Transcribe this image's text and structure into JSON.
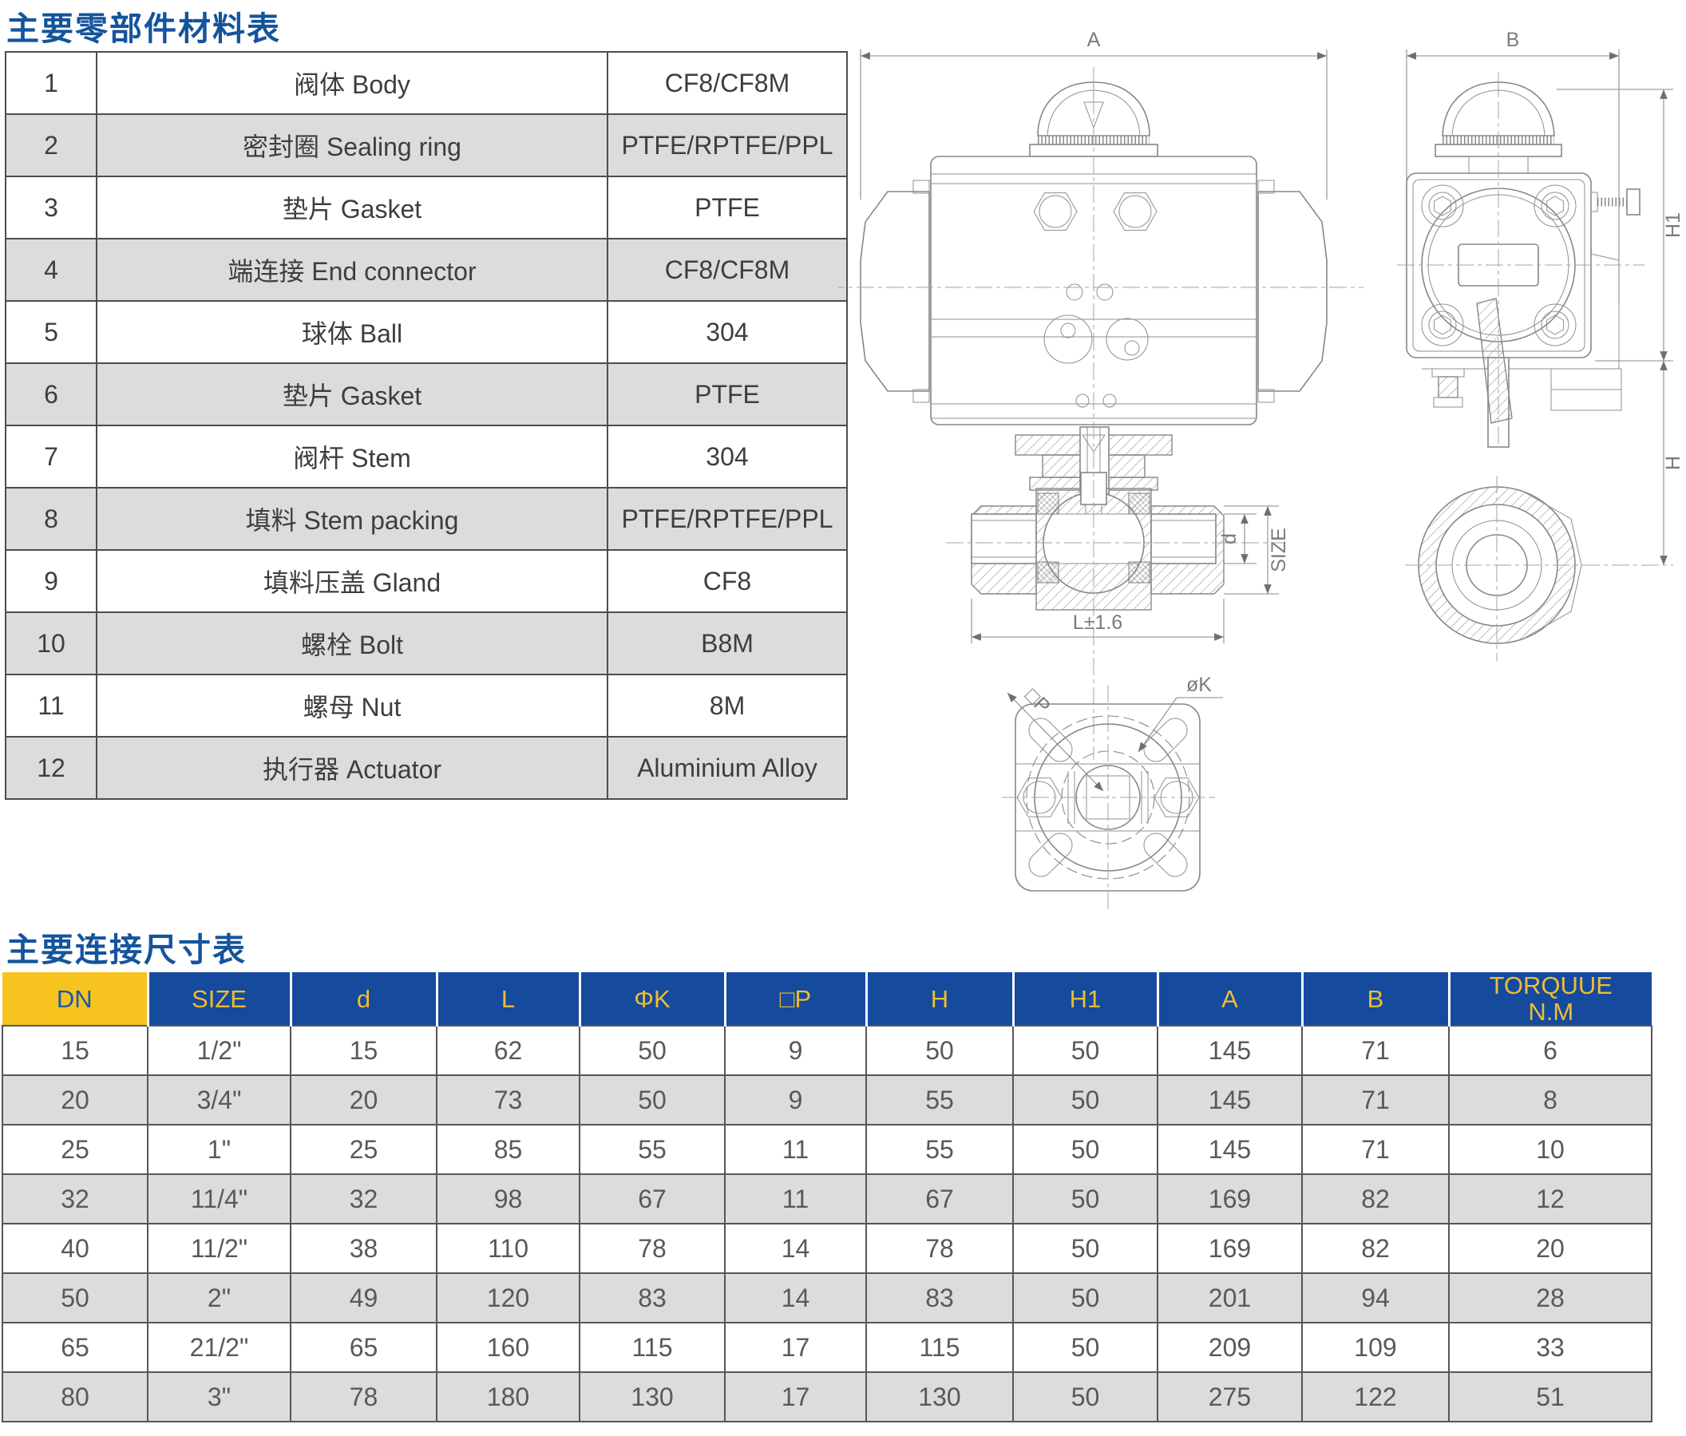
{
  "colors": {
    "title_blue": "#14549c",
    "header_blue": "#154a9d",
    "header_yellow_bg": "#f7c31f",
    "header_yellow_text": "#edbd33",
    "stripe_gray": "#dcdcdc"
  },
  "materials_section": {
    "title": "主要零部件材料表",
    "rows": [
      {
        "no": "1",
        "name": "阀体 Body",
        "material": "CF8/CF8M"
      },
      {
        "no": "2",
        "name": "密封圈 Sealing ring",
        "material": "PTFE/RPTFE/PPL"
      },
      {
        "no": "3",
        "name": "垫片 Gasket",
        "material": "PTFE"
      },
      {
        "no": "4",
        "name": "端连接 End connector",
        "material": "CF8/CF8M"
      },
      {
        "no": "5",
        "name": "球体 Ball",
        "material": "304"
      },
      {
        "no": "6",
        "name": "垫片 Gasket",
        "material": "PTFE"
      },
      {
        "no": "7",
        "name": "阀杆 Stem",
        "material": "304"
      },
      {
        "no": "8",
        "name": "填料 Stem packing",
        "material": "PTFE/RPTFE/PPL"
      },
      {
        "no": "9",
        "name": "填料压盖 Gland",
        "material": "CF8"
      },
      {
        "no": "10",
        "name": "螺栓 Bolt",
        "material": "B8M"
      },
      {
        "no": "11",
        "name": "螺母 Nut",
        "material": "8M"
      },
      {
        "no": "12",
        "name": "执行器 Actuator",
        "material": "Aluminium Alloy"
      }
    ]
  },
  "dimensions_section": {
    "title": "主要连接尺寸表",
    "headers": [
      "DN",
      "SIZE",
      "d",
      "L",
      "ΦK",
      "□P",
      "H",
      "H1",
      "A",
      "B"
    ],
    "torque_header": {
      "line1": "TORQUUE",
      "line2": "N.M"
    },
    "rows": [
      [
        "15",
        "1/2\"",
        "15",
        "62",
        "50",
        "9",
        "50",
        "50",
        "145",
        "71",
        "6"
      ],
      [
        "20",
        "3/4\"",
        "20",
        "73",
        "50",
        "9",
        "55",
        "50",
        "145",
        "71",
        "8"
      ],
      [
        "25",
        "1\"",
        "25",
        "85",
        "55",
        "11",
        "55",
        "50",
        "145",
        "71",
        "10"
      ],
      [
        "32",
        "11/4\"",
        "32",
        "98",
        "67",
        "11",
        "67",
        "50",
        "169",
        "82",
        "12"
      ],
      [
        "40",
        "11/2\"",
        "38",
        "110",
        "78",
        "14",
        "78",
        "50",
        "169",
        "82",
        "20"
      ],
      [
        "50",
        "2\"",
        "49",
        "120",
        "83",
        "14",
        "83",
        "50",
        "201",
        "94",
        "28"
      ],
      [
        "65",
        "21/2\"",
        "65",
        "160",
        "115",
        "17",
        "115",
        "50",
        "209",
        "109",
        "33"
      ],
      [
        "80",
        "3\"",
        "78",
        "180",
        "130",
        "17",
        "130",
        "50",
        "275",
        "122",
        "51"
      ]
    ]
  },
  "drawing": {
    "labels": {
      "dim_a": "A",
      "dim_b": "B",
      "dim_h1": "H1",
      "dim_h": "H",
      "dim_d": "d",
      "dim_size": "SIZE",
      "dim_l": "L±1.6",
      "dim_p": "□P",
      "dim_k": "øK"
    }
  }
}
